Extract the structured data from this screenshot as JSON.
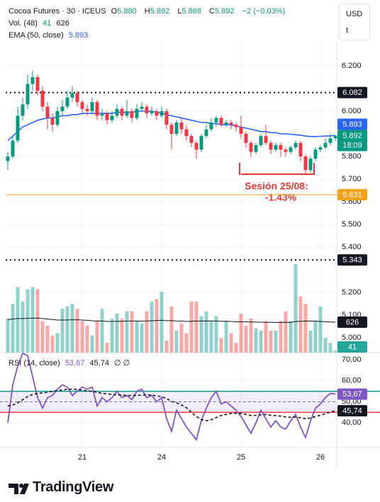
{
  "header": {
    "symbol": "Cocoa Futures · 30 · ICEUS",
    "ohlc": [
      {
        "key": "O",
        "value": "5.880"
      },
      {
        "key": "H",
        "value": "5.892"
      },
      {
        "key": "L",
        "value": "5.868"
      },
      {
        "key": "C",
        "value": "5.892"
      }
    ],
    "change": "−2 (−0,03%)",
    "currency": "USD",
    "currency_sub": "t",
    "rsi_flags": "∅ ∅"
  },
  "branding": "TradingView",
  "chart_data": [
    {
      "type": "candlestick",
      "categories": [
        null,
        null,
        null,
        null,
        null,
        null,
        null,
        null,
        null,
        null,
        null,
        null,
        null,
        null,
        null,
        "21",
        null,
        null,
        null,
        null,
        null,
        null,
        null,
        null,
        null,
        null,
        null,
        null,
        null,
        null,
        null,
        "24",
        null,
        null,
        null,
        null,
        null,
        null,
        null,
        null,
        null,
        null,
        null,
        null,
        null,
        null,
        null,
        "25",
        null,
        null,
        null,
        null,
        null,
        null,
        null,
        null,
        null,
        null,
        null,
        null,
        null,
        null,
        null,
        "26",
        null,
        null,
        null
      ],
      "open": [
        5.78,
        5.8,
        5.87,
        5.98,
        6.03,
        6.12,
        6.15,
        6.09,
        6.02,
        5.97,
        5.94,
        6.0,
        6.02,
        6.06,
        6.08,
        6.04,
        6.01,
        6.0,
        6.04,
        5.98,
        5.99,
        5.96,
        5.98,
        6.01,
        5.98,
        6.0,
        5.97,
        6.01,
        6.02,
        5.99,
        6.0,
        5.98,
        6.0,
        5.94,
        5.9,
        5.95,
        5.92,
        5.89,
        5.86,
        5.83,
        5.89,
        5.92,
        5.95,
        5.97,
        5.94,
        5.95,
        5.94,
        5.93,
        5.9,
        5.86,
        5.82,
        5.85,
        5.89,
        5.86,
        5.83,
        5.85,
        5.83,
        5.82,
        5.84,
        5.86,
        5.8,
        5.74,
        5.79,
        5.83,
        5.84,
        5.86,
        5.88
      ],
      "high": [
        5.82,
        5.89,
        6.02,
        6.06,
        6.16,
        6.18,
        6.16,
        6.11,
        6.04,
        5.99,
        6.02,
        6.05,
        6.09,
        6.11,
        6.09,
        6.05,
        6.03,
        6.06,
        6.05,
        6.01,
        6.0,
        6.0,
        6.03,
        6.02,
        6.05,
        6.01,
        6.03,
        6.04,
        6.03,
        6.02,
        6.01,
        6.02,
        6.01,
        5.95,
        5.96,
        5.97,
        5.94,
        5.9,
        5.87,
        5.9,
        5.94,
        5.97,
        5.98,
        5.98,
        5.96,
        5.96,
        5.95,
        5.98,
        5.91,
        5.87,
        5.86,
        5.9,
        5.94,
        5.87,
        5.86,
        5.86,
        5.84,
        5.85,
        5.87,
        5.87,
        5.81,
        5.8,
        5.84,
        5.85,
        5.88,
        5.9,
        5.892
      ],
      "low": [
        5.74,
        5.79,
        5.86,
        5.96,
        6.01,
        6.09,
        6.07,
        6.0,
        5.92,
        5.91,
        5.93,
        5.98,
        6.01,
        6.04,
        6.02,
        5.99,
        5.98,
        5.99,
        5.96,
        5.96,
        5.94,
        5.95,
        5.97,
        5.96,
        5.97,
        5.95,
        5.96,
        6.0,
        5.97,
        5.98,
        5.96,
        5.97,
        5.92,
        5.83,
        5.89,
        5.9,
        5.87,
        5.84,
        5.79,
        5.82,
        5.88,
        5.91,
        5.93,
        5.93,
        5.93,
        5.92,
        5.91,
        5.88,
        5.84,
        5.8,
        5.81,
        5.84,
        5.85,
        5.81,
        5.82,
        5.8,
        5.8,
        5.81,
        5.83,
        5.78,
        5.72,
        5.73,
        5.78,
        5.82,
        5.83,
        5.85,
        5.868
      ],
      "close": [
        5.8,
        5.87,
        5.98,
        6.03,
        6.12,
        6.15,
        6.09,
        6.02,
        5.97,
        5.94,
        6.0,
        6.02,
        6.06,
        6.08,
        6.04,
        6.01,
        6.0,
        6.04,
        5.98,
        5.99,
        5.96,
        5.98,
        6.01,
        5.98,
        6.0,
        5.97,
        6.01,
        6.02,
        5.99,
        6.0,
        5.98,
        6.0,
        5.94,
        5.9,
        5.95,
        5.92,
        5.89,
        5.86,
        5.83,
        5.89,
        5.92,
        5.95,
        5.97,
        5.94,
        5.95,
        5.94,
        5.93,
        5.9,
        5.86,
        5.82,
        5.85,
        5.89,
        5.86,
        5.83,
        5.85,
        5.83,
        5.82,
        5.84,
        5.86,
        5.8,
        5.74,
        5.79,
        5.83,
        5.84,
        5.86,
        5.88,
        5.892
      ],
      "up_color": "#089981",
      "down_color": "#f23645",
      "ylim": [
        4.934,
        6.297
      ],
      "yticks": [
        {
          "value": 6.2,
          "label": "6.200"
        },
        {
          "value": 6.0,
          "label": "6.000"
        },
        {
          "value": 5.8,
          "label": "5.800"
        },
        {
          "value": 5.7,
          "label": "5.700"
        },
        {
          "value": 5.6,
          "label": "5.600"
        },
        {
          "value": 5.5,
          "label": "5.500"
        },
        {
          "value": 5.4,
          "label": "5.400"
        },
        {
          "value": 5.2,
          "label": "5.200"
        },
        {
          "value": 5.1,
          "label": "5.100"
        },
        {
          "value": 5.0,
          "label": "5.000"
        }
      ],
      "grid": true,
      "series": [
        {
          "name": "EMA (50, close)",
          "color": "#2962ff",
          "values": [
            5.87,
            5.89,
            5.91,
            5.93,
            5.94,
            5.95,
            5.96,
            5.965,
            5.97,
            5.97,
            5.975,
            5.98,
            5.98,
            5.985,
            5.985,
            5.99,
            5.99,
            5.99,
            5.99,
            5.99,
            5.99,
            5.99,
            5.995,
            5.995,
            5.995,
            5.995,
            6.0,
            6.0,
            6.0,
            6.0,
            5.995,
            5.99,
            5.985,
            5.98,
            5.975,
            5.97,
            5.965,
            5.96,
            5.955,
            5.95,
            5.95,
            5.945,
            5.945,
            5.94,
            5.94,
            5.94,
            5.935,
            5.93,
            5.925,
            5.92,
            5.915,
            5.91,
            5.91,
            5.905,
            5.905,
            5.9,
            5.9,
            5.898,
            5.896,
            5.894,
            5.89,
            5.888,
            5.888,
            5.889,
            5.89,
            5.891,
            5.893
          ]
        }
      ],
      "volume": {
        "name": "Vol. (48)",
        "up_color": "#26a69a",
        "down_color": "#ef5350",
        "ma_color": "#131722",
        "values": [
          700,
          1000,
          1350,
          1050,
          1300,
          1350,
          1300,
          650,
          550,
          350,
          400,
          900,
          950,
          1000,
          900,
          650,
          550,
          350,
          650,
          900,
          200,
          700,
          800,
          700,
          850,
          850,
          650,
          600,
          850,
          1050,
          1100,
          1250,
          250,
          950,
          450,
          600,
          400,
          1050,
          1050,
          750,
          850,
          650,
          750,
          300,
          650,
          400,
          200,
          800,
          550,
          700,
          500,
          450,
          650,
          450,
          450,
          650,
          850,
          650,
          1820,
          1150,
          1000,
          450,
          650,
          950,
          300,
          200,
          41
        ],
        "ma": [
          680,
          690,
          700,
          700,
          705,
          710,
          710,
          700,
          690,
          680,
          670,
          670,
          672,
          675,
          675,
          670,
          665,
          655,
          650,
          650,
          640,
          640,
          642,
          645,
          648,
          650,
          650,
          648,
          650,
          655,
          660,
          665,
          655,
          658,
          650,
          648,
          640,
          645,
          650,
          650,
          652,
          650,
          650,
          645,
          645,
          640,
          632,
          635,
          632,
          632,
          628,
          625,
          625,
          622,
          620,
          620,
          622,
          620,
          640,
          645,
          650,
          648,
          648,
          640,
          635,
          630,
          626
        ],
        "badges": [
          {
            "value": 626,
            "label": "626",
            "color": "#131722"
          },
          {
            "value": 41,
            "label": "41",
            "color": "#26a69a"
          }
        ]
      },
      "levels": [
        {
          "value": 6.082,
          "color": "#131722",
          "style": "dotted"
        },
        {
          "value": 5.343,
          "color": "#131722",
          "style": "dotted"
        },
        {
          "value": 5.631,
          "color": "#f7a21b",
          "style": "solid"
        }
      ],
      "badges": [
        {
          "value": 6.082,
          "label": "6.082",
          "color": "#131722"
        },
        {
          "value": 5.892,
          "label": "5.892",
          "sublabel": "18:09",
          "color": "#089981"
        },
        {
          "value": 5.893,
          "label": "5.893",
          "color": "#2962ff"
        },
        {
          "value": 5.631,
          "label": "5.631",
          "color": "#f7a21b"
        },
        {
          "value": 5.343,
          "label": "5.343",
          "color": "#131722"
        }
      ],
      "annotation": {
        "lines": [
          "Sesión 25/08:",
          "-1.43%"
        ],
        "color": "#e53935"
      }
    },
    {
      "type": "line",
      "ylim": [
        28.3,
        72.7
      ],
      "yticks": [
        {
          "value": 70,
          "label": "70,00"
        },
        {
          "value": 60,
          "label": "60,00"
        },
        {
          "value": 50,
          "label": "50,00"
        },
        {
          "value": 40,
          "label": "40,00"
        }
      ],
      "bands": [
        {
          "value": 55,
          "color": "#089981"
        },
        {
          "value": 45,
          "color": "#f23645"
        }
      ],
      "midline": 50,
      "series": [
        {
          "name": "RSI (14, close)",
          "color": "#7e57c2",
          "values": [
            40,
            58,
            67,
            73,
            72,
            62,
            52,
            47,
            52,
            53,
            56,
            58,
            57,
            53,
            55,
            57,
            56,
            57,
            48,
            52,
            50,
            52,
            55,
            52,
            53,
            51,
            55,
            56,
            52,
            53,
            50,
            52,
            42,
            36,
            46,
            42,
            38,
            35,
            32,
            41,
            47,
            52,
            55,
            49,
            50,
            48,
            46,
            43,
            39,
            35,
            40,
            46,
            42,
            38,
            41,
            38,
            37,
            41,
            44,
            38,
            33,
            41,
            47,
            49,
            52,
            54,
            53.67
          ]
        },
        {
          "color": "#131722",
          "style": "dashed",
          "values": [
            48,
            48.5,
            49.5,
            51,
            52.5,
            53.5,
            54,
            54.2,
            54.5,
            55,
            55.3,
            55.6,
            56,
            56,
            55.8,
            55.5,
            55.2,
            55,
            54.5,
            54,
            53.8,
            53.5,
            53.3,
            53.2,
            53,
            53,
            53,
            53.2,
            53.4,
            53.2,
            52.8,
            52.5,
            51.5,
            50.2,
            49.5,
            48.5,
            47.2,
            45,
            43,
            41.5,
            41,
            41.5,
            42.5,
            43.5,
            44,
            44.5,
            44.5,
            44.5,
            44,
            43.5,
            43.6,
            43.8,
            44,
            43.6,
            43.4,
            43.2,
            42.8,
            42.6,
            42.8,
            42.4,
            42,
            42.3,
            43,
            43.6,
            44.4,
            45.1,
            45.74
          ]
        }
      ],
      "badges": [
        {
          "value": 53.67,
          "label": "53,67",
          "color": "#7e57c2"
        },
        {
          "value": 45.74,
          "label": "45,74",
          "color": "#131722"
        }
      ]
    }
  ]
}
